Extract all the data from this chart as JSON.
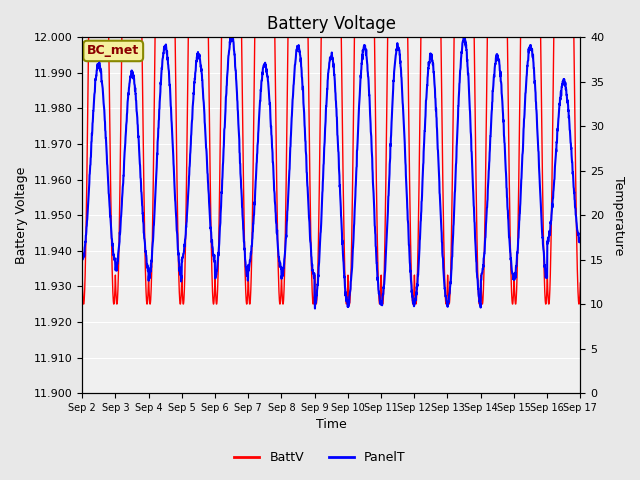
{
  "title": "Battery Voltage",
  "ylabel_left": "Battery Voltage",
  "ylabel_right": "Temperature",
  "xlabel": "Time",
  "ylim_left": [
    11.9,
    12.0
  ],
  "ylim_right": [
    0,
    40
  ],
  "annotation_text": "BC_met",
  "bg_color": "#e8e8e8",
  "plot_bg_color": "#f0f0f0",
  "batt_color": "red",
  "panel_color": "blue",
  "x_tick_labels": [
    "Sep 2",
    "Sep 3",
    "Sep 4",
    "Sep 5",
    "Sep 6",
    "Sep 7",
    "Sep 8",
    "Sep 9",
    "Sep 10",
    "Sep 11",
    "Sep 12",
    "Sep 13",
    "Sep 14",
    "Sep 15",
    "Sep 16",
    "Sep 17"
  ],
  "yticks_left": [
    11.9,
    11.91,
    11.92,
    11.93,
    11.94,
    11.95,
    11.96,
    11.97,
    11.98,
    11.99,
    12.0
  ],
  "yticks_right": [
    0,
    5,
    10,
    15,
    20,
    25,
    30,
    35,
    40
  ],
  "num_days": 15,
  "pts_per_day": 144
}
